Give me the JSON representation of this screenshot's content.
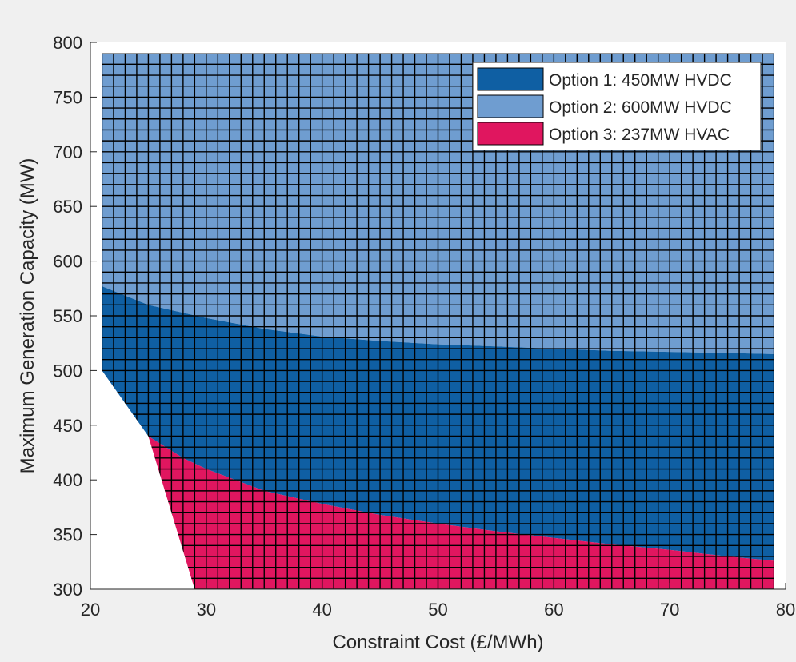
{
  "chart_data": {
    "type": "area",
    "title": "",
    "xlabel": "Constraint Cost (£/MWh)",
    "ylabel": "Maximum Generation Capacity (MW)",
    "xlim": [
      20,
      80
    ],
    "ylim": [
      300,
      800
    ],
    "xticks": [
      20,
      30,
      40,
      50,
      60,
      70,
      80
    ],
    "yticks": [
      300,
      350,
      400,
      450,
      500,
      550,
      600,
      650,
      700,
      750,
      800
    ],
    "grid": true,
    "grid_step": {
      "x": 1,
      "y": 10
    },
    "data_x_range": [
      21,
      79
    ],
    "data_y_max": 790,
    "legend_position": "top-right",
    "background": "#f0f0f0",
    "axes_background": "#ffffff",
    "series": [
      {
        "name": "Option 1: 450MW HVDC",
        "color": "#0f5fa3"
      },
      {
        "name": "Option 2: 600MW HVDC",
        "color": "#6f9dd0"
      },
      {
        "name": "Option 3: 237MW HVAC",
        "color": "#e0165f"
      }
    ],
    "boundaries": {
      "feasibility_limit": [
        [
          21,
          500
        ],
        [
          25,
          440
        ],
        [
          27,
          370
        ],
        [
          29,
          300
        ]
      ],
      "option2_option1": [
        [
          21,
          577
        ],
        [
          25,
          560
        ],
        [
          30,
          548
        ],
        [
          35,
          538
        ],
        [
          40,
          531
        ],
        [
          45,
          527
        ],
        [
          50,
          524
        ],
        [
          55,
          522
        ],
        [
          60,
          520
        ],
        [
          65,
          518
        ],
        [
          70,
          517
        ],
        [
          75,
          516
        ],
        [
          79,
          515
        ]
      ],
      "option1_option3": [
        [
          25,
          440
        ],
        [
          28,
          420
        ],
        [
          30,
          410
        ],
        [
          35,
          390
        ],
        [
          40,
          378
        ],
        [
          45,
          368
        ],
        [
          50,
          360
        ],
        [
          55,
          353
        ],
        [
          60,
          347
        ],
        [
          65,
          341
        ],
        [
          70,
          336
        ],
        [
          75,
          330
        ],
        [
          79,
          326
        ]
      ]
    }
  }
}
